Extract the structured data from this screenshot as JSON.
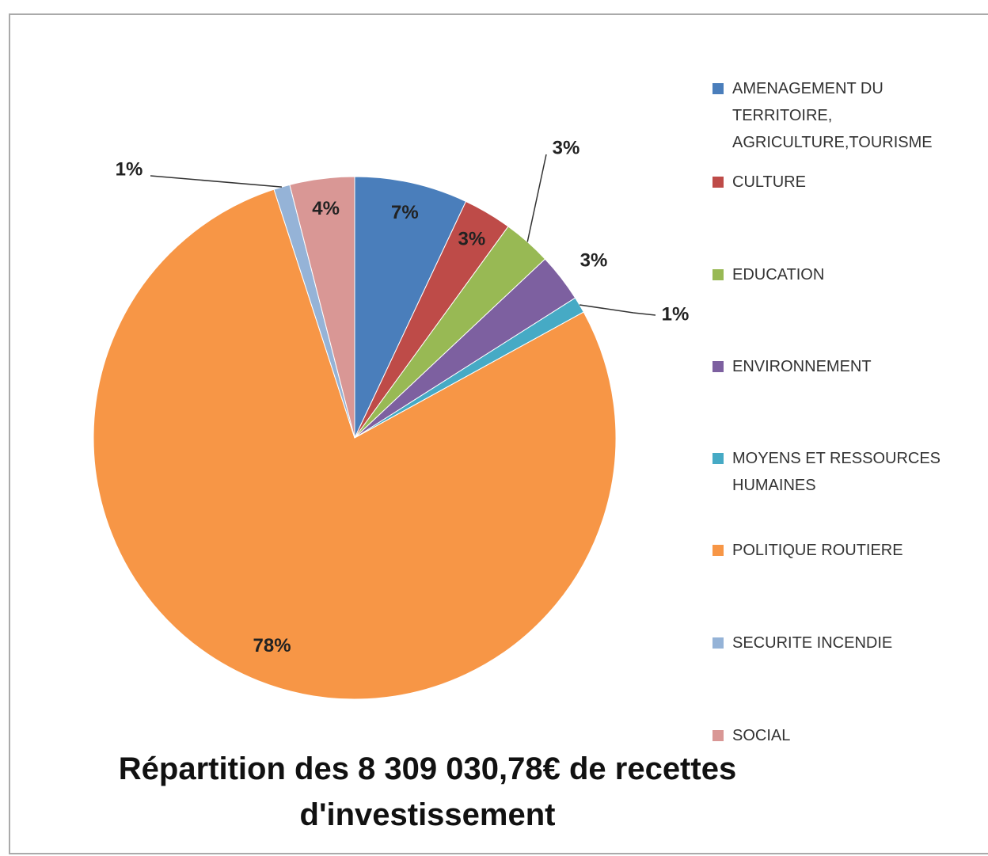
{
  "chart_data": {
    "type": "pie",
    "title": "Répartition des 8 309 030,78€ de recettes d'investissement",
    "categories": [
      "AMENAGEMENT DU TERRITOIRE, AGRICULTURE,TOURISME",
      "CULTURE",
      "EDUCATION",
      "ENVIRONNEMENT",
      "MOYENS ET RESSOURCES HUMAINES",
      "POLITIQUE ROUTIERE",
      "SECURITE INCENDIE",
      "SOCIAL"
    ],
    "values": [
      7,
      3,
      3,
      3,
      1,
      78,
      1,
      4
    ],
    "value_labels": [
      "7%",
      "3%",
      "3%",
      "3%",
      "1%",
      "78%",
      "1%",
      "4%"
    ],
    "colors": [
      "#4a7ebb",
      "#be4b48",
      "#98b954",
      "#7d60a0",
      "#46aac5",
      "#f79646",
      "#95b3d7",
      "#d99795"
    ],
    "legend": "right"
  }
}
